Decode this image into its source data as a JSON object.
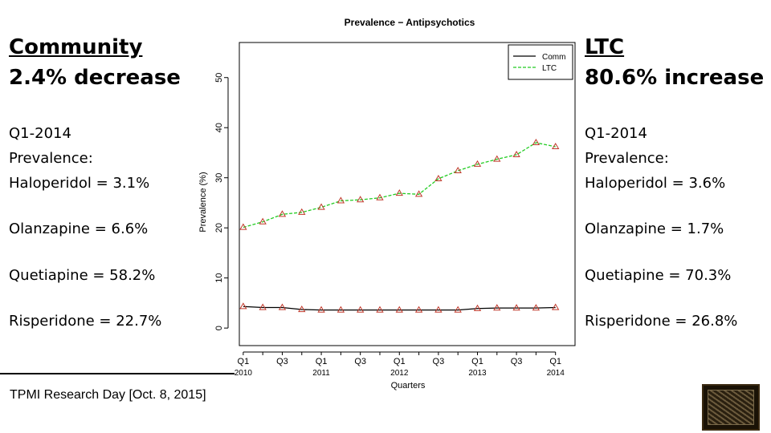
{
  "left_panel": {
    "heading_line1": "Community",
    "heading_line2": "2.4% decrease",
    "quarter": "Q1-2014",
    "prevalence_label": "Prevalence:",
    "stats": [
      "Haloperidol = 3.1%",
      "Olanzapine = 6.6%",
      "Quetiapine = 58.2%",
      "Risperidone = 22.7%"
    ]
  },
  "right_panel": {
    "heading_line1": "LTC",
    "heading_line2": "80.6% increase",
    "quarter": "Q1-2014",
    "prevalence_label": "Prevalence:",
    "stats": [
      "Haloperidol = 3.6%",
      "Olanzapine = 1.7%",
      "Quetiapine = 70.3%",
      "Risperidone = 26.8%"
    ]
  },
  "footer": {
    "text": "TPMI Research Day [Oct. 8, 2015]"
  },
  "chart_data": {
    "type": "line",
    "title": "Prevalence − Antipsychotics",
    "xlabel": "Quarters",
    "ylabel": "Prevalence (%)",
    "ylim": [
      0,
      55
    ],
    "yticks": [
      0,
      10,
      20,
      30,
      40,
      50
    ],
    "x": [
      1,
      2,
      3,
      4,
      5,
      6,
      7,
      8,
      9,
      10,
      11,
      12,
      13,
      14,
      15,
      16,
      17
    ],
    "xtick_labels": [
      {
        "x": 1,
        "q": "Q1",
        "year": "2010"
      },
      {
        "x": 2,
        "q": "",
        "year": ""
      },
      {
        "x": 3,
        "q": "Q3",
        "year": ""
      },
      {
        "x": 4,
        "q": "",
        "year": ""
      },
      {
        "x": 5,
        "q": "Q1",
        "year": "2011"
      },
      {
        "x": 6,
        "q": "",
        "year": ""
      },
      {
        "x": 7,
        "q": "Q3",
        "year": ""
      },
      {
        "x": 8,
        "q": "",
        "year": ""
      },
      {
        "x": 9,
        "q": "Q1",
        "year": "2012"
      },
      {
        "x": 10,
        "q": "",
        "year": ""
      },
      {
        "x": 11,
        "q": "Q3",
        "year": ""
      },
      {
        "x": 12,
        "q": "",
        "year": ""
      },
      {
        "x": 13,
        "q": "Q1",
        "year": "2013"
      },
      {
        "x": 14,
        "q": "",
        "year": ""
      },
      {
        "x": 15,
        "q": "Q3",
        "year": ""
      },
      {
        "x": 16,
        "q": "",
        "year": ""
      },
      {
        "x": 17,
        "q": "Q1",
        "year": "2014"
      }
    ],
    "series": [
      {
        "name": "Comm",
        "color": "#000000",
        "style": "solid",
        "values": [
          4.3,
          4.1,
          4.1,
          3.7,
          3.6,
          3.6,
          3.6,
          3.6,
          3.6,
          3.6,
          3.6,
          3.6,
          3.9,
          4.0,
          4.0,
          4.0,
          4.1
        ]
      },
      {
        "name": "LTC",
        "color": "#22cc22",
        "style": "dashed",
        "values": [
          20.1,
          21.2,
          22.7,
          23.1,
          24.1,
          25.4,
          25.6,
          26.0,
          26.9,
          26.7,
          29.8,
          31.4,
          32.7,
          33.7,
          34.6,
          37.0,
          36.2
        ]
      }
    ],
    "legend": [
      "Comm",
      "LTC"
    ],
    "legend_position": "top-right",
    "marker_color": "#c0392b"
  }
}
